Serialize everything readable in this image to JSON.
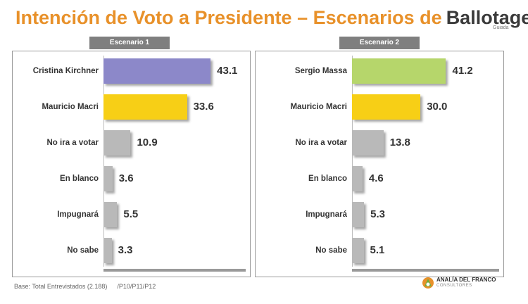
{
  "title": {
    "part1": "Intención de Voto a Presidente – Escenarios de",
    "part2": "Ballotage"
  },
  "note": "Guiada",
  "footer": {
    "base": "Base: Total Entrevistados (2.188)",
    "questions": "/P10/P11/P12"
  },
  "logo": {
    "name": "ANALÍA DEL FRANCO",
    "sub": "CONSULTORES"
  },
  "colors": {
    "kirchner": "#8c88c9",
    "macri": "#f7cf16",
    "massa": "#b6d66b",
    "other": "#b9b9b9"
  },
  "chart_data": [
    {
      "type": "bar",
      "orientation": "horizontal",
      "title": "Escenario 1",
      "categories": [
        "Cristina Kirchner",
        "Mauricio Macri",
        "No ira a votar",
        "En blanco",
        "Impugnará",
        "No sabe"
      ],
      "values": [
        43.1,
        33.6,
        10.9,
        3.6,
        5.5,
        3.3
      ],
      "value_labels": [
        "43.1",
        "33.6",
        "10.9",
        "3.6",
        "5.5",
        "3.3"
      ],
      "bar_colors": [
        "#8c88c9",
        "#f7cf16",
        "#b9b9b9",
        "#b9b9b9",
        "#b9b9b9",
        "#b9b9b9"
      ],
      "xlim": [
        0,
        50
      ],
      "grid": false,
      "legend": "none"
    },
    {
      "type": "bar",
      "orientation": "horizontal",
      "title": "Escenario 2",
      "categories": [
        "Sergio Massa",
        "Mauricio Macri",
        "No ira a votar",
        "En blanco",
        "Impugnará",
        "No sabe"
      ],
      "values": [
        41.2,
        30.0,
        13.8,
        4.6,
        5.3,
        5.1
      ],
      "value_labels": [
        "41.2",
        "30.0",
        "13.8",
        "4.6",
        "5.3",
        "5.1"
      ],
      "bar_colors": [
        "#b6d66b",
        "#f7cf16",
        "#b9b9b9",
        "#b9b9b9",
        "#b9b9b9",
        "#b9b9b9"
      ],
      "xlim": [
        0,
        50
      ],
      "grid": false,
      "legend": "none"
    }
  ]
}
